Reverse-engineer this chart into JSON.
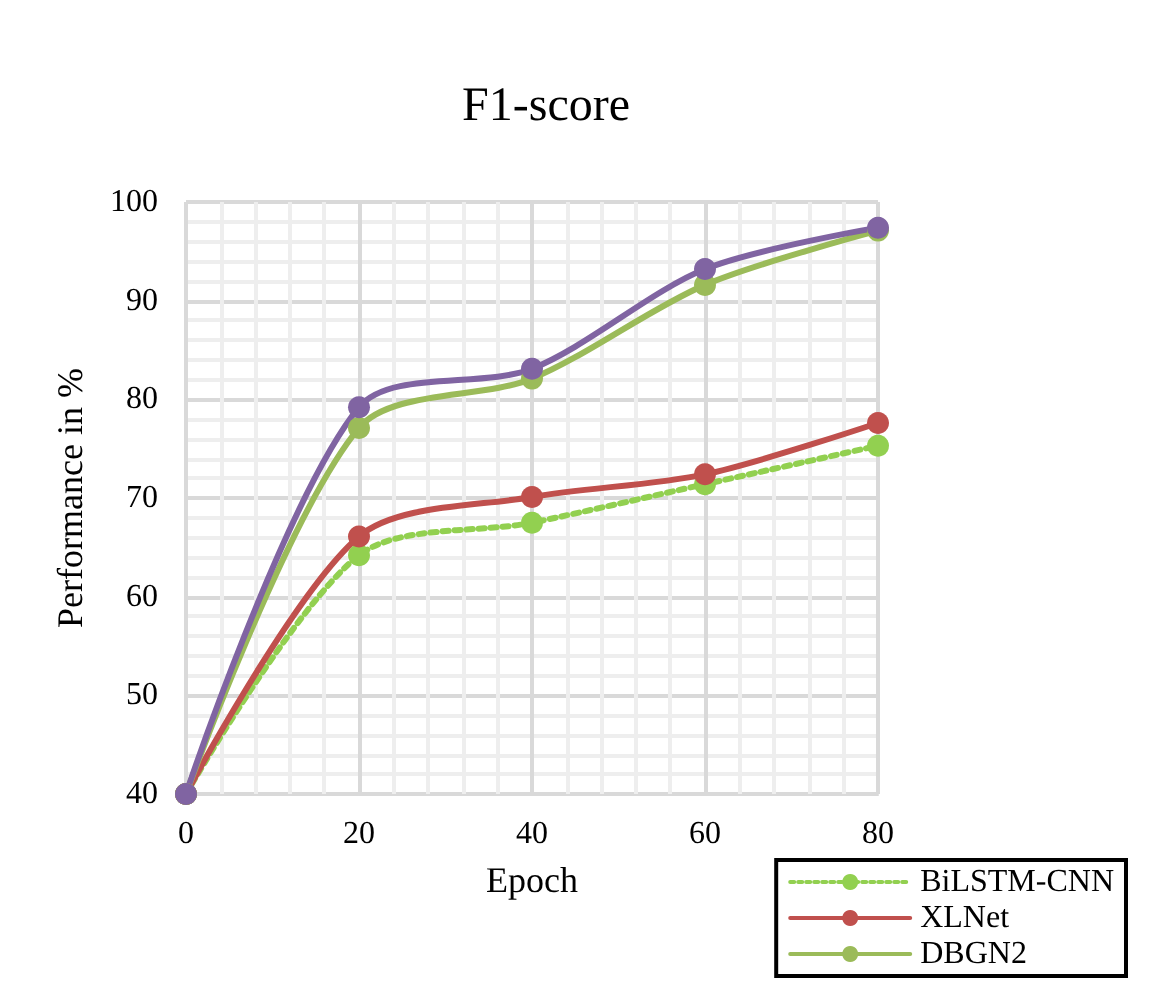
{
  "chart_data": {
    "type": "line",
    "title": "F1-score",
    "xlabel": "Epoch",
    "ylabel": "Performance in %",
    "x": [
      0,
      20,
      40,
      60,
      80
    ],
    "series": [
      {
        "name": "BiLSTM-CNN",
        "color": "#92d050",
        "line_style": "dotted",
        "values": [
          40,
          64.2,
          67.5,
          71.4,
          75.3
        ]
      },
      {
        "name": "XLNet",
        "color": "#c0504d",
        "values": [
          40,
          66.1,
          70.1,
          72.4,
          77.6
        ]
      },
      {
        "name": "DBGN2",
        "color": "#9bbb59",
        "values": [
          40,
          77.1,
          82.1,
          91.6,
          97.1
        ]
      },
      {
        "color": "#8064a2",
        "values": [
          40,
          79.2,
          83.1,
          93.2,
          97.4
        ]
      }
    ],
    "xlim": [
      0,
      80
    ],
    "xticks": [
      0,
      20,
      40,
      60,
      80
    ],
    "ylim": [
      40,
      100
    ],
    "yticks": [
      40,
      50,
      60,
      70,
      80,
      90,
      100
    ],
    "grid": true,
    "legend": "bottom right",
    "marker": "circle",
    "line_style": "solid"
  }
}
